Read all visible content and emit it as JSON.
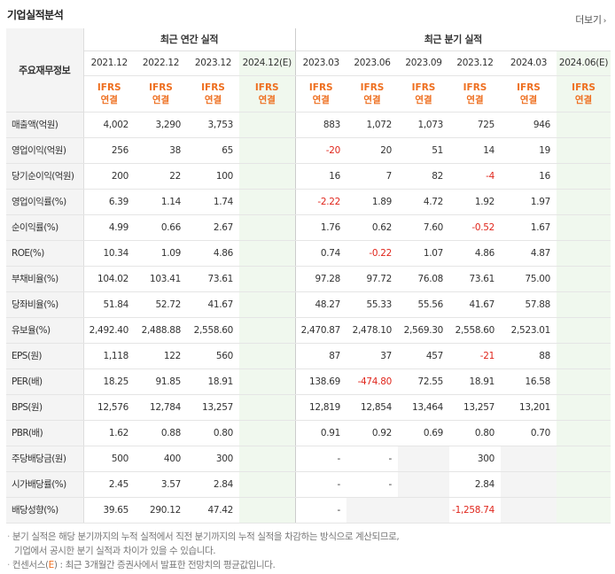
{
  "header": {
    "title": "기업실적분석",
    "more_label": "더보기"
  },
  "table": {
    "row_header_label": "주요재무정보",
    "annual_group_label": "최근 연간 실적",
    "quarter_group_label": "최근 분기 실적",
    "periods": [
      "2021.12",
      "2022.12",
      "2023.12",
      "2024.12(E)",
      "2023.03",
      "2023.06",
      "2023.09",
      "2023.12",
      "2024.03",
      "2024.06(E)"
    ],
    "estimate_period_indices": [
      3,
      9
    ],
    "accounting_line1": "IFRS",
    "accounting_line2": "연결",
    "rows": [
      {
        "label": "매출액(억원)",
        "values": [
          "4,002",
          "3,290",
          "3,753",
          "",
          "883",
          "1,072",
          "1,073",
          "725",
          "946",
          ""
        ]
      },
      {
        "label": "영업이익(억원)",
        "values": [
          "256",
          "38",
          "65",
          "",
          "-20",
          "20",
          "51",
          "14",
          "19",
          ""
        ]
      },
      {
        "label": "당기순이익(억원)",
        "values": [
          "200",
          "22",
          "100",
          "",
          "16",
          "7",
          "82",
          "-4",
          "16",
          ""
        ]
      },
      {
        "label": "영업이익률(%)",
        "values": [
          "6.39",
          "1.14",
          "1.74",
          "",
          "-2.22",
          "1.89",
          "4.72",
          "1.92",
          "1.97",
          ""
        ]
      },
      {
        "label": "순이익률(%)",
        "values": [
          "4.99",
          "0.66",
          "2.67",
          "",
          "1.76",
          "0.62",
          "7.60",
          "-0.52",
          "1.67",
          ""
        ]
      },
      {
        "label": "ROE(%)",
        "values": [
          "10.34",
          "1.09",
          "4.86",
          "",
          "0.74",
          "-0.22",
          "1.07",
          "4.86",
          "4.87",
          ""
        ]
      },
      {
        "label": "부채비율(%)",
        "values": [
          "104.02",
          "103.41",
          "73.61",
          "",
          "97.28",
          "97.72",
          "76.08",
          "73.61",
          "75.00",
          ""
        ]
      },
      {
        "label": "당좌비율(%)",
        "values": [
          "51.84",
          "52.72",
          "41.67",
          "",
          "48.27",
          "55.33",
          "55.56",
          "41.67",
          "57.88",
          ""
        ]
      },
      {
        "label": "유보율(%)",
        "values": [
          "2,492.40",
          "2,488.88",
          "2,558.60",
          "",
          "2,470.87",
          "2,478.10",
          "2,569.30",
          "2,558.60",
          "2,523.01",
          ""
        ]
      },
      {
        "label": "EPS(원)",
        "values": [
          "1,118",
          "122",
          "560",
          "",
          "87",
          "37",
          "457",
          "-21",
          "88",
          ""
        ]
      },
      {
        "label": "PER(배)",
        "values": [
          "18.25",
          "91.85",
          "18.91",
          "",
          "138.69",
          "-474.80",
          "72.55",
          "18.91",
          "16.58",
          ""
        ]
      },
      {
        "label": "BPS(원)",
        "values": [
          "12,576",
          "12,784",
          "13,257",
          "",
          "12,819",
          "12,854",
          "13,464",
          "13,257",
          "13,201",
          ""
        ]
      },
      {
        "label": "PBR(배)",
        "values": [
          "1.62",
          "0.88",
          "0.80",
          "",
          "0.91",
          "0.92",
          "0.69",
          "0.80",
          "0.70",
          ""
        ]
      },
      {
        "label": "주당배당금(원)",
        "values": [
          "500",
          "400",
          "300",
          "",
          "-",
          "-",
          "",
          "300",
          "",
          ""
        ]
      },
      {
        "label": "시가배당률(%)",
        "values": [
          "2.45",
          "3.57",
          "2.84",
          "",
          "-",
          "-",
          "",
          "2.84",
          "",
          ""
        ]
      },
      {
        "label": "배당성향(%)",
        "values": [
          "39.65",
          "290.12",
          "47.42",
          "",
          "-",
          "",
          "",
          "-1,258.74",
          "",
          ""
        ]
      }
    ]
  },
  "notes": {
    "line1": "분기 실적은 해당 분기까지의 누적 실적에서 직전 분기까지의 누적 실적을 차감하는 방식으로 계산되므로,",
    "line2": "기업에서 공시한 분기 실적과 차이가 있을 수 있습니다.",
    "line3_prefix": "컨센서스(",
    "line3_e": "E",
    "line3_suffix": ") : 최근 3개월간 증권사에서 발표한 전망치의 평균값입니다."
  },
  "colors": {
    "accent_orange": "#ee6f20",
    "negative_red": "#e0261c",
    "estimate_bg": "#f0f8ee",
    "label_bg": "#f4f4f4"
  }
}
